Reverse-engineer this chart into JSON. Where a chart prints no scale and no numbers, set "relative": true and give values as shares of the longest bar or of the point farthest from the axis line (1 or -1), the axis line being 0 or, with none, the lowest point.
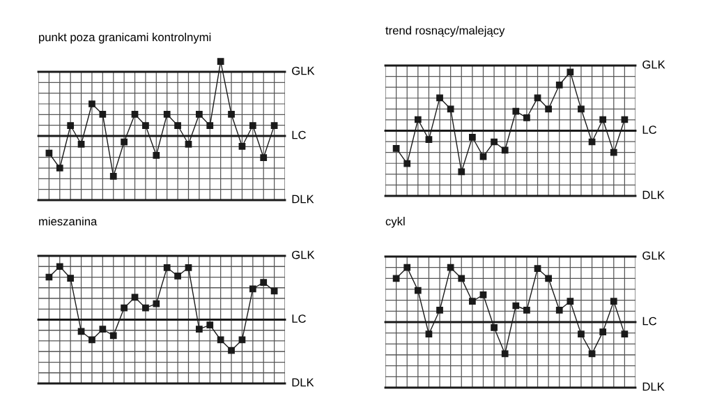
{
  "chart_data": [
    {
      "type": "line",
      "title": "punkt poza granicami kontrolnymi",
      "relative": true,
      "grid": true,
      "marker": "square",
      "line_style": "solid",
      "categories": [
        null,
        null,
        null,
        null,
        null,
        null,
        null,
        null,
        null,
        null,
        null,
        null,
        null,
        null,
        null,
        null,
        null,
        null,
        null,
        null,
        null,
        null
      ],
      "series": [
        {
          "color": "#1a1a1a",
          "values": [
            -0.23,
            -0.43,
            0.14,
            -0.11,
            0.43,
            0.29,
            -0.54,
            -0.08,
            0.29,
            0.14,
            -0.26,
            0.29,
            0.14,
            -0.11,
            0.29,
            0.14,
            1,
            0.29,
            -0.14,
            0.14,
            -0.29,
            0.14
          ]
        }
      ],
      "ref_lines": [
        {
          "axis": "y",
          "value": 0.86,
          "label": "GLK",
          "color": "#1a1a1a"
        },
        {
          "axis": "y",
          "value": 0,
          "label": "LC",
          "color": "#1a1a1a"
        },
        {
          "axis": "y",
          "value": -0.86,
          "label": "DLK",
          "color": "#1a1a1a"
        }
      ]
    },
    {
      "type": "line",
      "title": "trend rosnący/malejący",
      "relative": true,
      "grid": true,
      "marker": "square",
      "line_style": "solid",
      "categories": [
        null,
        null,
        null,
        null,
        null,
        null,
        null,
        null,
        null,
        null,
        null,
        null,
        null,
        null,
        null,
        null,
        null,
        null,
        null,
        null,
        null,
        null
      ],
      "series": [
        {
          "color": "#1a1a1a",
          "values": [
            -0.3,
            -0.56,
            0.19,
            -0.15,
            0.56,
            0.37,
            -0.7,
            -0.11,
            -0.44,
            -0.19,
            -0.33,
            0.33,
            0.22,
            0.56,
            0.37,
            0.78,
            1,
            0.37,
            -0.19,
            0.19,
            -0.37,
            0.19
          ]
        }
      ],
      "ref_lines": [
        {
          "axis": "y",
          "value": 1.11,
          "label": "GLK",
          "color": "#1a1a1a"
        },
        {
          "axis": "y",
          "value": 0,
          "label": "LC",
          "color": "#1a1a1a"
        },
        {
          "axis": "y",
          "value": -1.11,
          "label": "DLK",
          "color": "#1a1a1a"
        }
      ]
    },
    {
      "type": "line",
      "title": "mieszanina",
      "relative": true,
      "grid": true,
      "marker": "square",
      "line_style": "solid",
      "categories": [
        null,
        null,
        null,
        null,
        null,
        null,
        null,
        null,
        null,
        null,
        null,
        null,
        null,
        null,
        null,
        null,
        null,
        null,
        null,
        null,
        null,
        null
      ],
      "series": [
        {
          "color": "#1a1a1a",
          "values": [
            0.8,
            1,
            0.78,
            -0.22,
            -0.38,
            -0.18,
            -0.3,
            0.22,
            0.42,
            0.22,
            0.3,
            0.98,
            0.82,
            0.98,
            -0.18,
            -0.1,
            -0.38,
            -0.58,
            -0.38,
            0.58,
            0.7,
            0.54
          ]
        }
      ],
      "ref_lines": [
        {
          "axis": "y",
          "value": 1.2,
          "label": "GLK",
          "color": "#1a1a1a"
        },
        {
          "axis": "y",
          "value": 0,
          "label": "LC",
          "color": "#1a1a1a"
        },
        {
          "axis": "y",
          "value": -1.2,
          "label": "DLK",
          "color": "#1a1a1a"
        }
      ]
    },
    {
      "type": "line",
      "title": "cykl",
      "relative": true,
      "grid": true,
      "marker": "square",
      "line_style": "solid",
      "categories": [
        null,
        null,
        null,
        null,
        null,
        null,
        null,
        null,
        null,
        null,
        null,
        null,
        null,
        null,
        null,
        null,
        null,
        null,
        null,
        null,
        null,
        null
      ],
      "series": [
        {
          "color": "#1a1a1a",
          "values": [
            0.8,
            1,
            0.58,
            -0.22,
            0.22,
            1,
            0.8,
            0.38,
            0.5,
            -0.1,
            -0.58,
            0.3,
            0.22,
            0.98,
            0.8,
            0.22,
            0.38,
            -0.22,
            -0.58,
            -0.18,
            0.38,
            -0.22
          ]
        }
      ],
      "ref_lines": [
        {
          "axis": "y",
          "value": 1.2,
          "label": "GLK",
          "color": "#1a1a1a"
        },
        {
          "axis": "y",
          "value": 0,
          "label": "LC",
          "color": "#1a1a1a"
        },
        {
          "axis": "y",
          "value": -1.2,
          "label": "DLK",
          "color": "#1a1a1a"
        }
      ]
    }
  ]
}
